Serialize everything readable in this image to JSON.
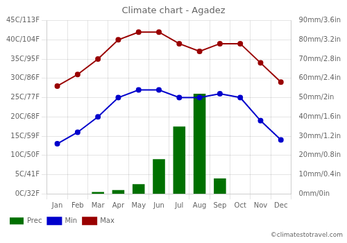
{
  "chart_data": {
    "type": "bar",
    "title": "Climate chart - Agadez",
    "categories": [
      "Jan",
      "Feb",
      "Mar",
      "Apr",
      "May",
      "Jun",
      "Jul",
      "Aug",
      "Sep",
      "Oct",
      "Nov",
      "Dec"
    ],
    "series": [
      {
        "name": "Prec",
        "type": "bar",
        "color": "#007000",
        "axis": "y2",
        "values": [
          0,
          0,
          1,
          2,
          5,
          18,
          35,
          52,
          8,
          0,
          0,
          0
        ]
      },
      {
        "name": "Min",
        "type": "line",
        "color": "#0000cc",
        "marker": "circle",
        "values": [
          13,
          16,
          20,
          25,
          27,
          27,
          25,
          25,
          26,
          25,
          19,
          14
        ]
      },
      {
        "name": "Max",
        "type": "line",
        "color": "#990000",
        "marker": "circle",
        "values": [
          28,
          31,
          35,
          40,
          42,
          42,
          39,
          37,
          39,
          39,
          34,
          29
        ]
      }
    ],
    "ylim": [
      0,
      45
    ],
    "yticks": [
      {
        "value": 0,
        "label": "0C/32F"
      },
      {
        "value": 5,
        "label": "5C/41F"
      },
      {
        "value": 10,
        "label": "10C/50F"
      },
      {
        "value": 15,
        "label": "15C/59F"
      },
      {
        "value": 20,
        "label": "20C/68F"
      },
      {
        "value": 25,
        "label": "25C/77F"
      },
      {
        "value": 30,
        "label": "30C/86F"
      },
      {
        "value": 35,
        "label": "35C/95F"
      },
      {
        "value": 40,
        "label": "40C/104F"
      },
      {
        "value": 45,
        "label": "45C/113F"
      }
    ],
    "y2lim": [
      0,
      90
    ],
    "y2ticks": [
      {
        "value": 0,
        "label": "0mm/0in"
      },
      {
        "value": 10,
        "label": "10mm/0.4in"
      },
      {
        "value": 20,
        "label": "20mm/0.8in"
      },
      {
        "value": 30,
        "label": "30mm/1.2in"
      },
      {
        "value": 40,
        "label": "40mm/1.6in"
      },
      {
        "value": 50,
        "label": "50mm/2in"
      },
      {
        "value": 60,
        "label": "60mm/2.4in"
      },
      {
        "value": 70,
        "label": "70mm/2.8in"
      },
      {
        "value": 80,
        "label": "80mm/3.2in"
      },
      {
        "value": 90,
        "label": "90mm/3.6in"
      }
    ],
    "grid": true,
    "legend": "bottom",
    "annotations": [
      "©climatestotravel.com"
    ]
  }
}
